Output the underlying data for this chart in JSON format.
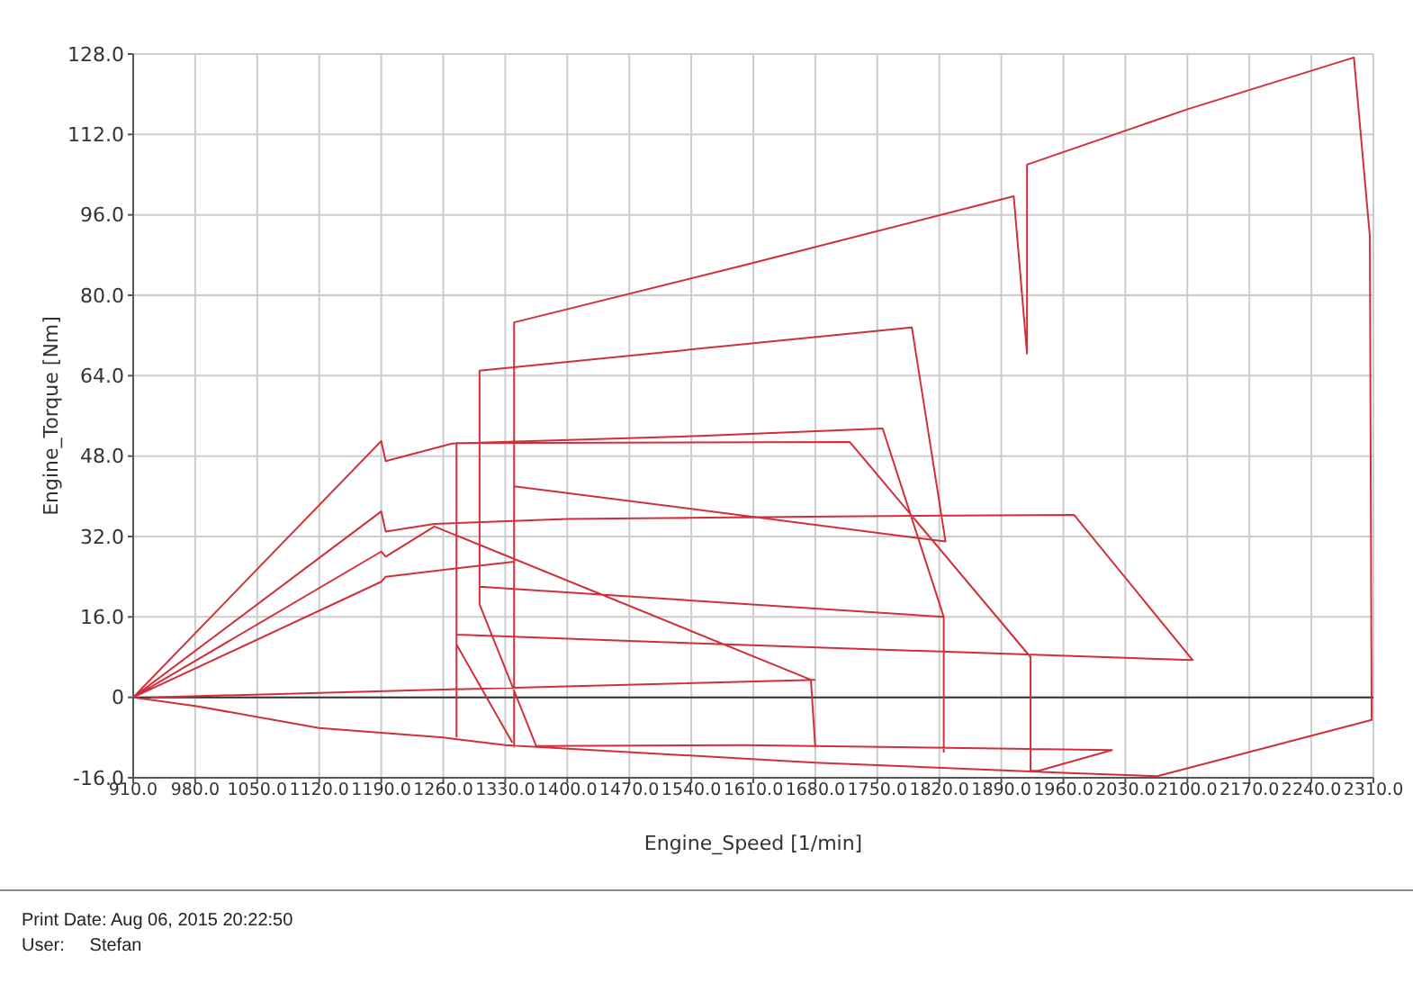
{
  "chart_data": {
    "type": "line",
    "xlabel": "Engine_Speed [1/min]",
    "ylabel": "Engine_Torque [Nm]",
    "xlim": [
      910,
      2310
    ],
    "xticks": [
      {
        "value": 910,
        "label": "910.0"
      },
      {
        "value": 980,
        "label": "980.0"
      },
      {
        "value": 1050,
        "label": "1050.0"
      },
      {
        "value": 1120,
        "label": "1120.0"
      },
      {
        "value": 1190,
        "label": "1190.0"
      },
      {
        "value": 1260,
        "label": "1260.0"
      },
      {
        "value": 1330,
        "label": "1330.0"
      },
      {
        "value": 1400,
        "label": "1400.0"
      },
      {
        "value": 1470,
        "label": "1470.0"
      },
      {
        "value": 1540,
        "label": "1540.0"
      },
      {
        "value": 1610,
        "label": "1610.0"
      },
      {
        "value": 1680,
        "label": "1680.0"
      },
      {
        "value": 1750,
        "label": "1750.0"
      },
      {
        "value": 1820,
        "label": "1820.0"
      },
      {
        "value": 1890,
        "label": "1890.0"
      },
      {
        "value": 1960,
        "label": "1960.0"
      },
      {
        "value": 2030,
        "label": "2030.0"
      },
      {
        "value": 2100,
        "label": "2100.0"
      },
      {
        "value": 2170,
        "label": "2170.0"
      },
      {
        "value": 2240,
        "label": "2240.0"
      },
      {
        "value": 2310,
        "label": "2310.0"
      }
    ],
    "ylim": [
      -16,
      128
    ],
    "yticks": [
      {
        "value": -16,
        "label": "-16.0"
      },
      0,
      {
        "value": 16,
        "label": "16.0"
      },
      {
        "value": 32,
        "label": "32.0"
      },
      {
        "value": 48,
        "label": "48.0"
      },
      {
        "value": 64,
        "label": "64.0"
      },
      {
        "value": 80,
        "label": "80.0"
      },
      {
        "value": 96,
        "label": "96.0"
      },
      {
        "value": 112,
        "label": "112.0"
      },
      {
        "value": 128,
        "label": "128.0"
      }
    ],
    "grid": true,
    "legend": false,
    "marker": "none",
    "line_style": "solid",
    "ref_lines": [
      {
        "axis": "y",
        "value": 0,
        "label": null,
        "color": "#333333"
      }
    ],
    "annotations": [
      "Print Date: Aug 06, 2015 20:22:50",
      "User:     Stefan"
    ],
    "series": [
      {
        "color": "#d0303a",
        "x": [
          910,
          1190,
          1195,
          1270,
          1550,
          1756,
          1825,
          null,
          1825,
          1825,
          1301,
          1301,
          1365,
          1600,
          2015,
          1932,
          1923,
          1923,
          1719,
          1275,
          1275,
          null,
          910,
          1190,
          1195,
          1250,
          1400,
          1700,
          1972,
          2106,
          1505,
          1275,
          null,
          1275,
          1338,
          null,
          910,
          1190,
          1195,
          1250,
          1675,
          1680,
          null,
          910,
          1190,
          1195,
          1340,
          null,
          1340,
          1340,
          1600,
          1904,
          1919,
          1919,
          2100,
          2288,
          2306,
          2308,
          2066,
          1960,
          1680,
          1330,
          1260,
          1120,
          980,
          910,
          null,
          1301,
          1301,
          1789,
          1827,
          1340,
          null,
          930,
          1680
        ],
        "values": [
          0,
          51,
          47,
          50.5,
          52,
          53.5,
          16,
          null,
          -11,
          16,
          22,
          18.5,
          -9.7,
          -9.5,
          -10.5,
          -14.6,
          -14.6,
          8,
          50.8,
          50.6,
          -8,
          null,
          0,
          37,
          33,
          34.5,
          35.5,
          36,
          36.3,
          7.4,
          11,
          12.5,
          null,
          10.5,
          -9,
          null,
          0,
          29,
          28,
          34,
          3.5,
          -10,
          null,
          0,
          23,
          24,
          27,
          null,
          -10,
          74.6,
          86,
          99.7,
          68.4,
          106,
          117,
          127.3,
          91.7,
          -4.5,
          -15.7,
          -15,
          -13,
          -9.5,
          -8,
          -6.1,
          -1.7,
          0,
          null,
          18.5,
          65,
          73.6,
          31,
          42,
          null,
          0,
          3.5
        ]
      }
    ]
  }
}
